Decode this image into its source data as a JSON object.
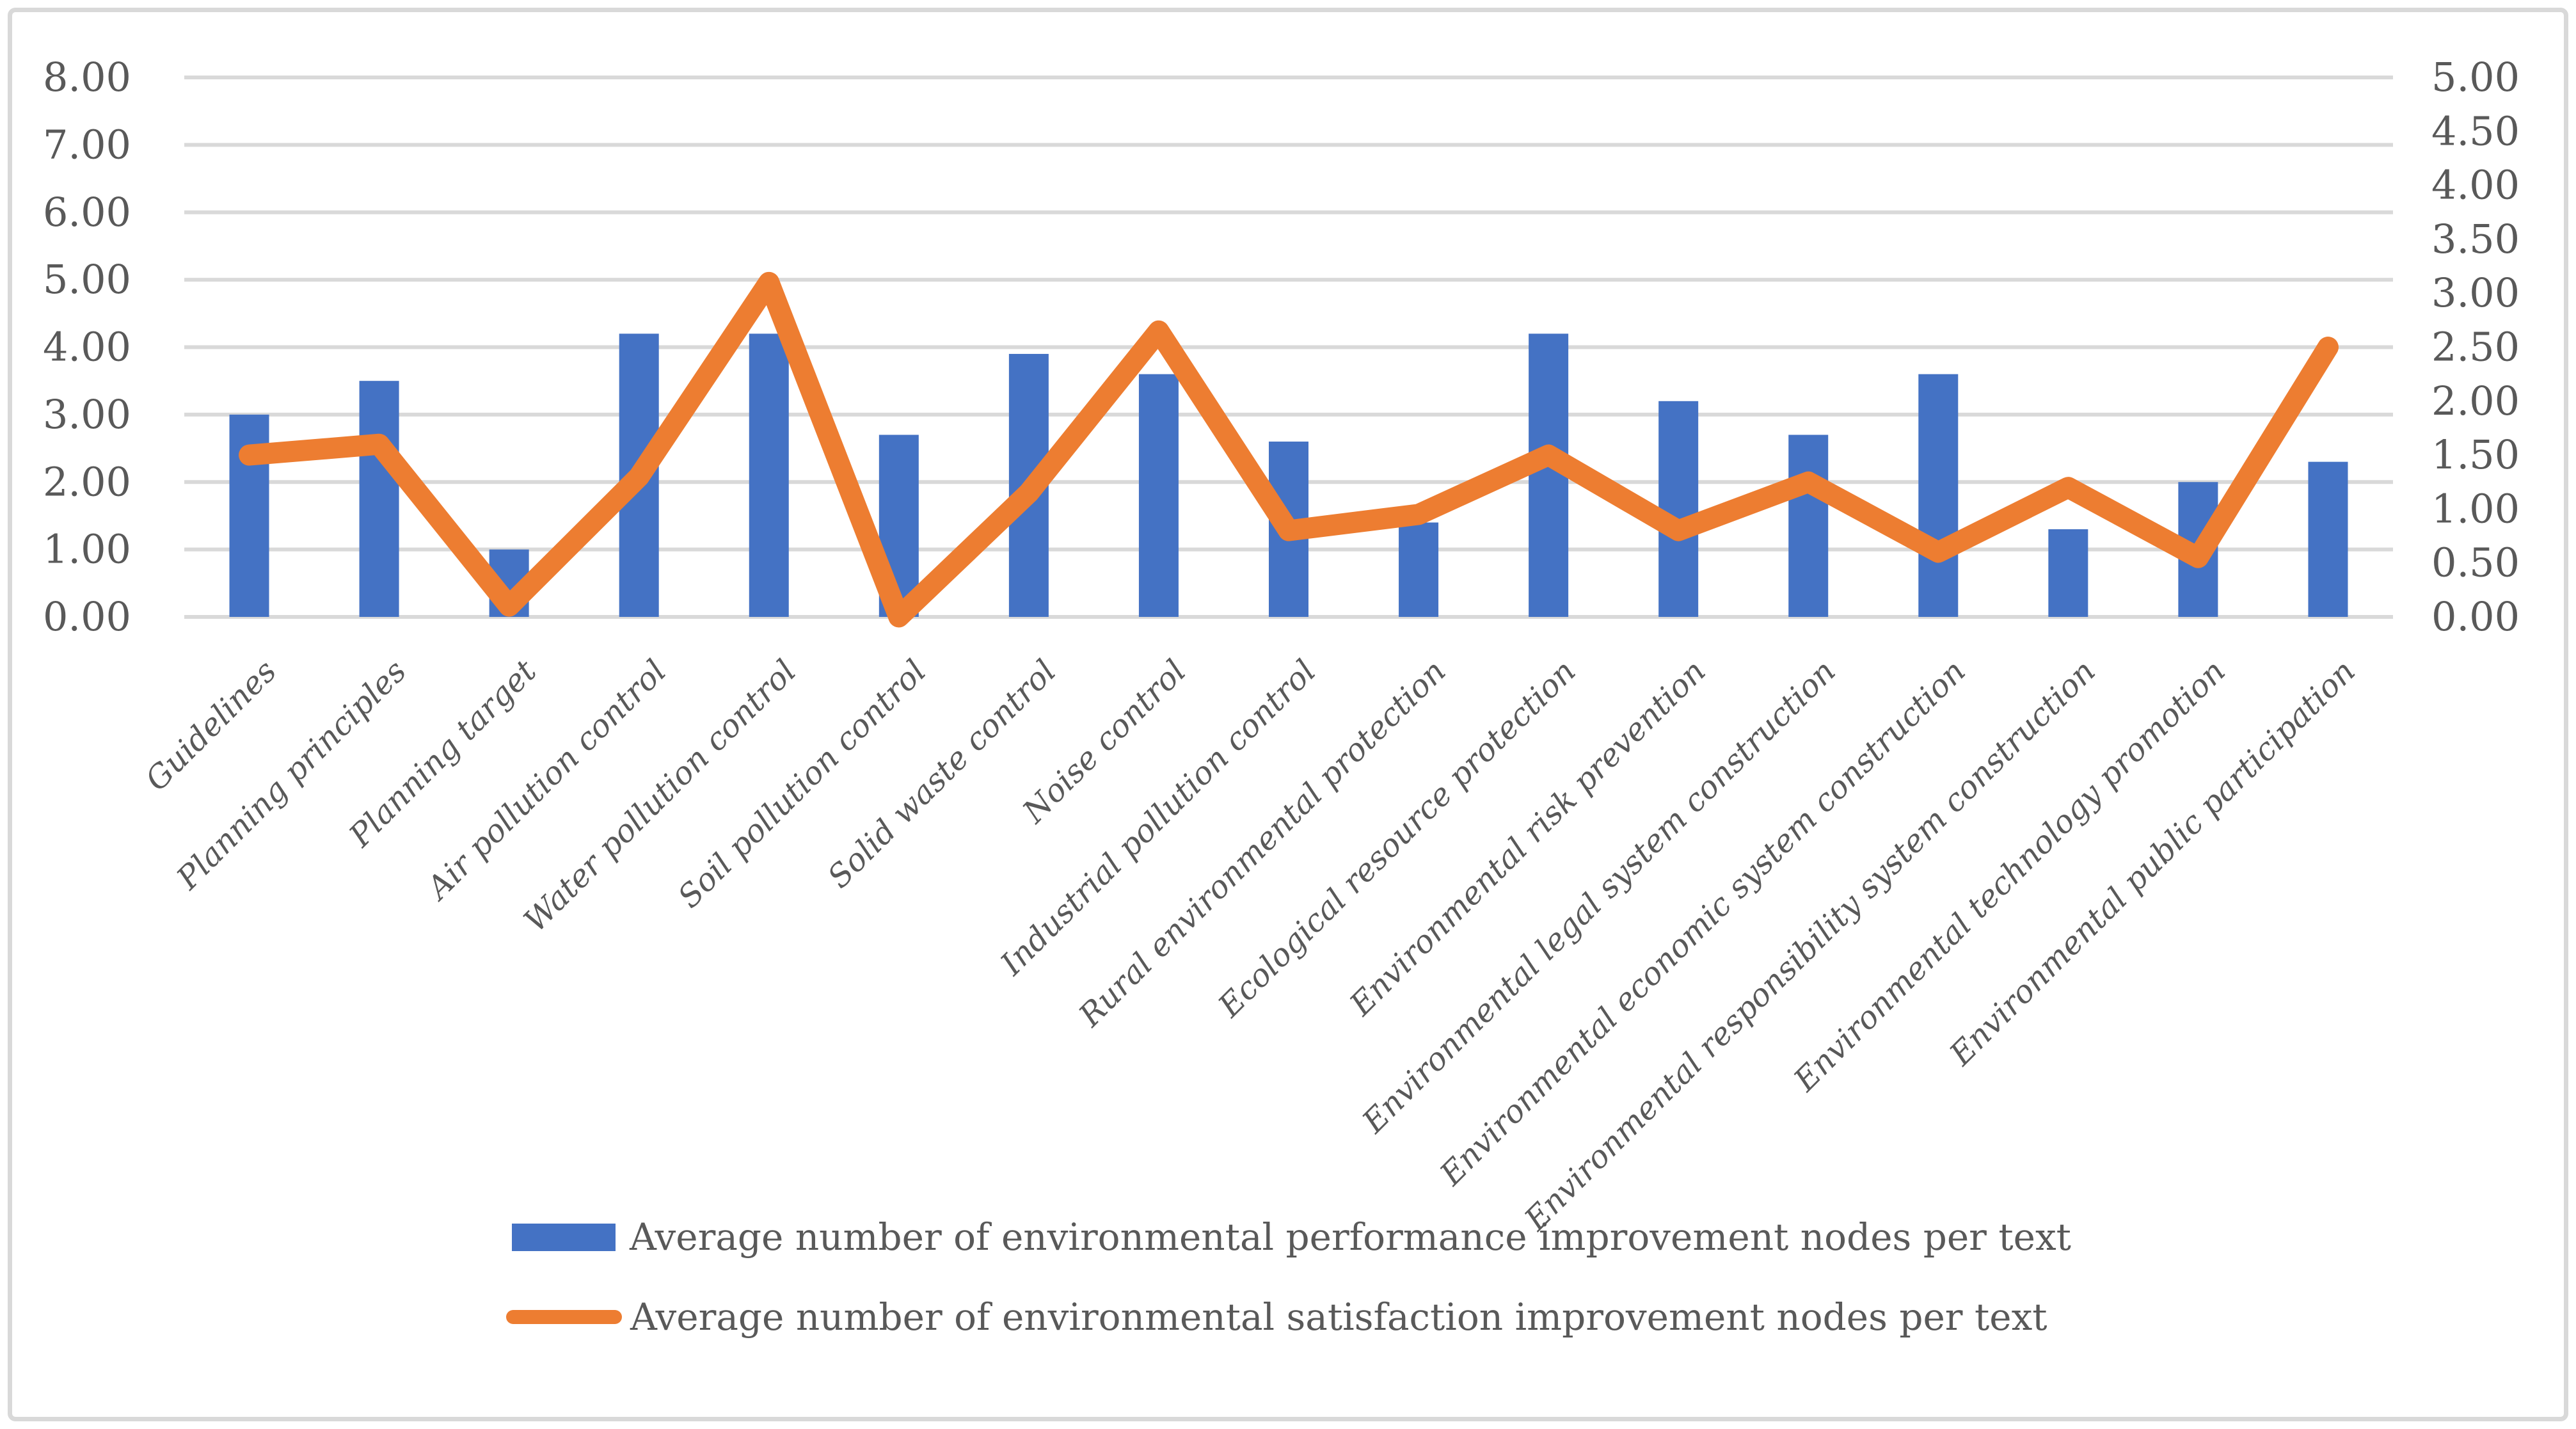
{
  "chart_data": {
    "type": "bar",
    "subtype": "combo-bar-line-dual-axis",
    "title": "",
    "xlabel": "",
    "ylabel": "",
    "grid": "horizontal",
    "legend_position": "bottom",
    "categories": [
      "Guidelines",
      "Planning principles",
      "Planning target",
      "Air pollution control",
      "Water pollution control",
      "Soil pollution control",
      "Solid waste control",
      "Noise control",
      "Industrial pollution control",
      "Rural environmental protection",
      "Ecological resource protection",
      "Environmental risk prevention",
      "Environmental legal system construction",
      "Environmental economic system construction",
      "Environmental responsibility system construction",
      "Environmental technology promotion",
      "Environmental public participation"
    ],
    "series": [
      {
        "name": "Average number of environmental performance improvement nodes per text",
        "type": "bar",
        "axis": "left",
        "color": "#4472C4",
        "values": [
          3.0,
          3.5,
          1.0,
          4.2,
          4.2,
          2.7,
          3.9,
          3.6,
          2.6,
          1.4,
          4.2,
          3.2,
          2.7,
          3.6,
          1.3,
          2.0,
          2.3
        ]
      },
      {
        "name": "Average number of environmental satisfaction improvement nodes per text",
        "type": "line",
        "axis": "right",
        "color": "#ED7D31",
        "values": [
          1.5,
          1.6,
          0.1,
          1.3,
          3.1,
          0.0,
          1.15,
          2.65,
          0.8,
          0.95,
          1.5,
          0.8,
          1.25,
          0.6,
          1.2,
          0.55,
          2.5
        ]
      }
    ],
    "left_axis": {
      "min": 0,
      "max": 8,
      "step": 1,
      "tick_labels": [
        "0.00",
        "1.00",
        "2.00",
        "3.00",
        "4.00",
        "5.00",
        "6.00",
        "7.00",
        "8.00"
      ]
    },
    "right_axis": {
      "min": 0,
      "max": 5,
      "step": 0.5,
      "tick_labels": [
        "0.00",
        "0.50",
        "1.00",
        "1.50",
        "2.00",
        "2.50",
        "3.00",
        "3.50",
        "4.00",
        "4.50",
        "5.00"
      ]
    }
  },
  "legend": {
    "items": [
      {
        "swatch": "bar-swatch",
        "label": "Average number of environmental performance improvement nodes per text"
      },
      {
        "swatch": "line-swatch",
        "label": "Average number of environmental satisfaction improvement nodes per text"
      }
    ]
  },
  "colors": {
    "bar": "#4472C4",
    "line": "#ED7D31",
    "gridline": "#D9D9D9",
    "axis_text": "#595959",
    "frame_border": "#D9D9D9",
    "background": "#FFFFFF"
  }
}
